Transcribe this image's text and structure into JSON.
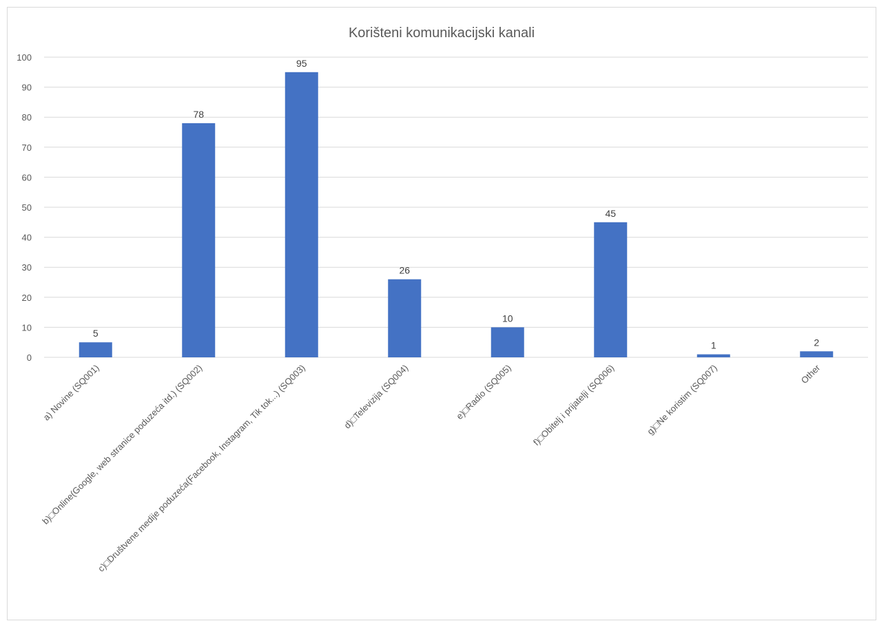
{
  "chart_data": {
    "type": "bar",
    "title": "Korišteni komunikacijski kanali",
    "xlabel": "",
    "ylabel": "",
    "ylim": [
      0,
      100
    ],
    "yticks": [
      0,
      10,
      20,
      30,
      40,
      50,
      60,
      70,
      80,
      90,
      100
    ],
    "grid": true,
    "legend": "none",
    "bar_color": "#4472c4",
    "categories": [
      "a) Novine (SQ001)",
      "b)□Online(Google, web stranice poduzeća itd.) (SQ002)",
      "c)□Društvene medije poduzeća(Facebook, Instagram, Tik tok...) (SQ003)",
      "d)□Televizija (SQ004)",
      "e)□Radio (SQ005)",
      "f)□Obitelj i prijatelji (SQ006)",
      "g)□Ne koristim (SQ007)",
      "Other"
    ],
    "values": [
      5,
      78,
      95,
      26,
      10,
      45,
      1,
      2
    ]
  }
}
